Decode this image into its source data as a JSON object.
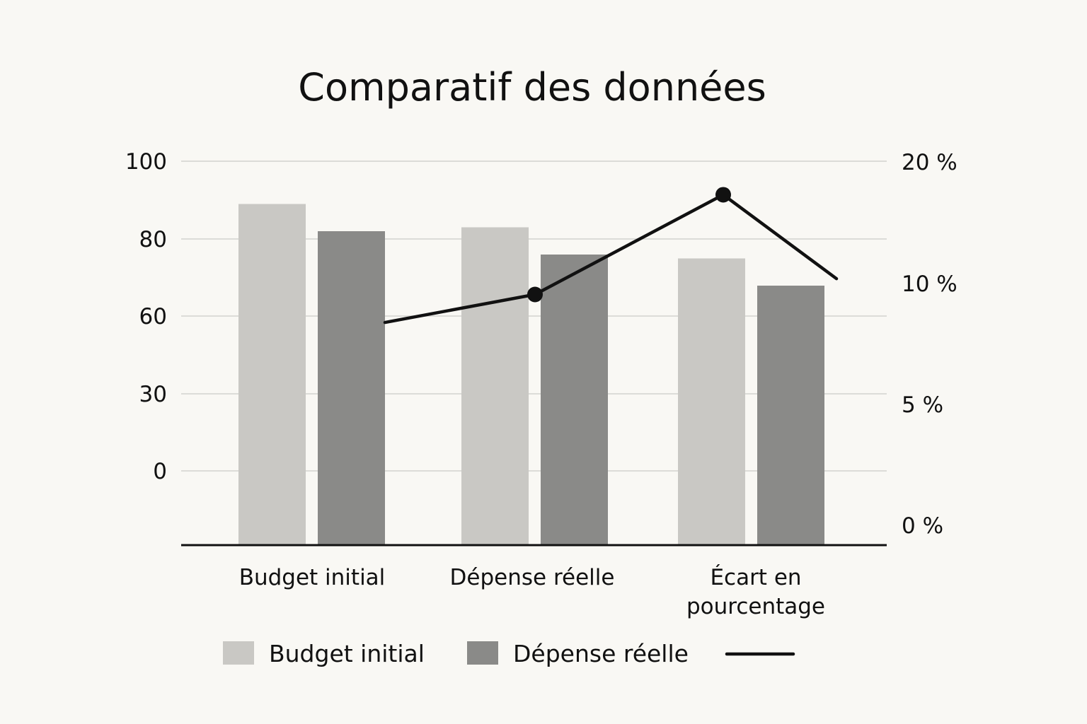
{
  "chart_data": {
    "type": "bar",
    "title": "Comparatif des données",
    "categories": [
      "Budget initial",
      "Dépense réelle",
      "Écart en pourcentage"
    ],
    "category_label_lines": [
      [
        "Budget initial"
      ],
      [
        "Dépense réelle"
      ],
      [
        "Écart en",
        "pourcentage"
      ]
    ],
    "series": [
      {
        "name": "Budget initial",
        "type": "bar",
        "axis": "left",
        "color": "#c9c8c4",
        "values": [
          89,
          83,
          75
        ]
      },
      {
        "name": "Dépense réelle",
        "type": "bar",
        "axis": "left",
        "color": "#8a8a88",
        "values": [
          82,
          76,
          68
        ]
      },
      {
        "name": "",
        "type": "line",
        "axis": "right",
        "color": "#111111",
        "values": [
          6.8,
          9.1,
          17.3
        ],
        "markers": [
          false,
          true,
          true
        ],
        "tail_value": 10.4
      }
    ],
    "left_axis": {
      "ticks": [
        "100",
        "80",
        "60",
        "30",
        "0"
      ]
    },
    "right_axis": {
      "ticks": [
        "20 %",
        "10 %",
        "5 %",
        "0 %"
      ]
    },
    "grid": true,
    "legend": {
      "position": "bottom",
      "entries": [
        "Budget initial",
        "Dépense réelle",
        ""
      ]
    }
  }
}
